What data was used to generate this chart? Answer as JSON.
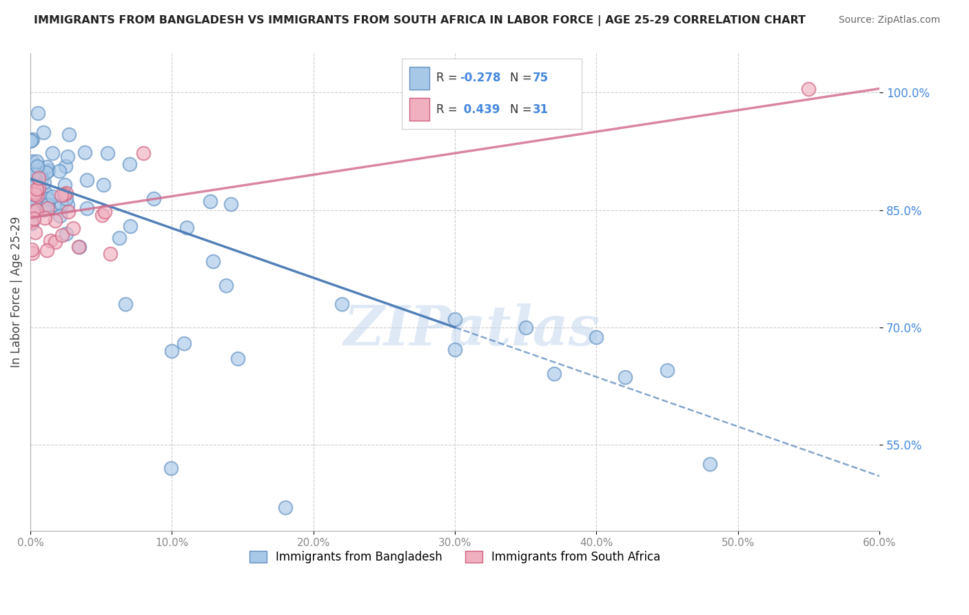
{
  "title": "IMMIGRANTS FROM BANGLADESH VS IMMIGRANTS FROM SOUTH AFRICA IN LABOR FORCE | AGE 25-29 CORRELATION CHART",
  "source": "Source: ZipAtlas.com",
  "xlim": [
    0,
    60
  ],
  "ylim": [
    44,
    105
  ],
  "ytick_vals": [
    55.0,
    70.0,
    85.0,
    100.0
  ],
  "xtick_vals": [
    0.0,
    10.0,
    20.0,
    30.0,
    40.0,
    50.0,
    60.0
  ],
  "R_bangladesh": -0.278,
  "N_bangladesh": 75,
  "R_southafrica": 0.439,
  "N_southafrica": 31,
  "color_bangladesh": "#a8c8e8",
  "color_southafrica": "#f0b0c0",
  "edge_color_bangladesh": "#6090c0",
  "edge_color_southafrica": "#d06080",
  "line_color_bangladesh": "#5080b8",
  "line_color_southafrica": "#d06888",
  "watermark": "ZIPatlas",
  "legend_label_bangladesh": "Immigrants from Bangladesh",
  "legend_label_southafrica": "Immigrants from South Africa",
  "trend_bd_x0": 0.0,
  "trend_bd_y0": 89.0,
  "trend_bd_x1": 30.0,
  "trend_bd_y1": 70.0,
  "trend_bd_xdash": 60.0,
  "trend_bd_ydash": 51.0,
  "trend_sa_x0": 0.0,
  "trend_sa_y0": 84.0,
  "trend_sa_x1": 60.0,
  "trend_sa_y1": 100.5
}
